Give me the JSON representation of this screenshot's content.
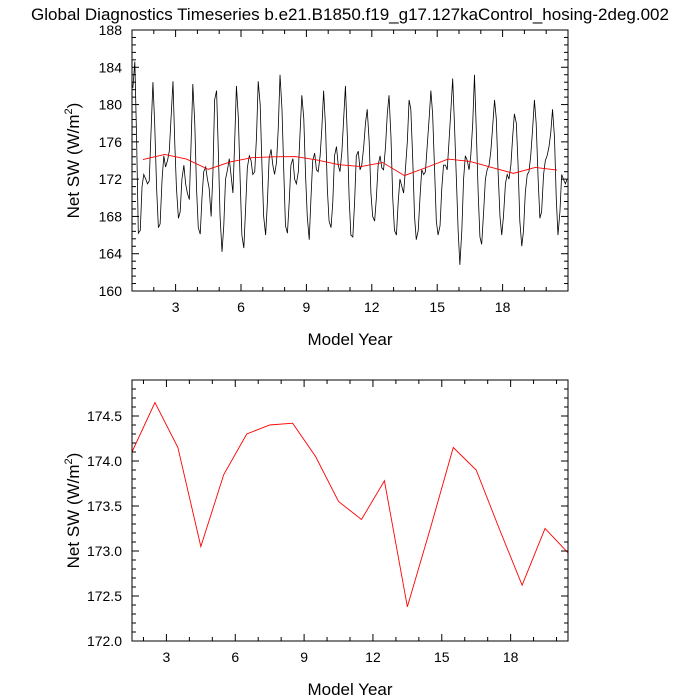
{
  "title": "Global Diagnostics Timeseries b.e21.B1850.f19_g17.127kaControl_hosing-2deg.002",
  "colors": {
    "monthly": "#000000",
    "annual": "#ff0000",
    "axis": "#000000"
  },
  "chart_data": [
    {
      "type": "line",
      "xlabel": "Model Year",
      "ylabel": "Net SW (W/m",
      "ylabel_sup": "2",
      "ylabel_end": ")",
      "xlim": [
        1,
        21
      ],
      "ylim": [
        160,
        188
      ],
      "xticks": [
        3,
        6,
        9,
        12,
        15,
        18
      ],
      "yticks": [
        160,
        164,
        168,
        172,
        176,
        180,
        184,
        188
      ],
      "ytick_labels": [
        "160",
        "164",
        "168",
        "172",
        "176",
        "180",
        "184",
        "188"
      ],
      "series": [
        {
          "style": "monthly",
          "x": [
            1.04,
            1.13,
            1.21,
            1.29,
            1.38,
            1.46,
            1.54,
            1.63,
            1.71,
            1.79,
            1.88,
            1.96,
            2.04,
            2.13,
            2.21,
            2.29,
            2.38,
            2.46,
            2.54,
            2.63,
            2.71,
            2.79,
            2.88,
            2.96,
            3.04,
            3.13,
            3.21,
            3.29,
            3.38,
            3.46,
            3.54,
            3.63,
            3.71,
            3.79,
            3.88,
            3.96,
            4.04,
            4.13,
            4.21,
            4.29,
            4.38,
            4.46,
            4.54,
            4.63,
            4.71,
            4.79,
            4.88,
            4.96,
            5.04,
            5.13,
            5.21,
            5.29,
            5.38,
            5.46,
            5.54,
            5.63,
            5.71,
            5.79,
            5.88,
            5.96,
            6.04,
            6.13,
            6.21,
            6.29,
            6.38,
            6.46,
            6.54,
            6.63,
            6.71,
            6.79,
            6.88,
            6.96,
            7.04,
            7.13,
            7.21,
            7.29,
            7.38,
            7.46,
            7.54,
            7.63,
            7.71,
            7.79,
            7.88,
            7.96,
            8.04,
            8.13,
            8.21,
            8.29,
            8.38,
            8.46,
            8.54,
            8.63,
            8.71,
            8.79,
            8.88,
            8.96,
            9.04,
            9.13,
            9.21,
            9.29,
            9.38,
            9.46,
            9.54,
            9.63,
            9.71,
            9.79,
            9.88,
            9.96,
            10.04,
            10.13,
            10.21,
            10.29,
            10.38,
            10.46,
            10.54,
            10.63,
            10.71,
            10.79,
            10.88,
            10.96,
            11.04,
            11.13,
            11.21,
            11.29,
            11.38,
            11.46,
            11.54,
            11.63,
            11.71,
            11.79,
            11.88,
            11.96,
            12.04,
            12.13,
            12.21,
            12.29,
            12.38,
            12.46,
            12.54,
            12.63,
            12.71,
            12.79,
            12.88,
            12.96,
            13.04,
            13.13,
            13.21,
            13.29,
            13.38,
            13.46,
            13.54,
            13.63,
            13.71,
            13.79,
            13.88,
            13.96,
            14.04,
            14.13,
            14.21,
            14.29,
            14.38,
            14.46,
            14.54,
            14.63,
            14.71,
            14.79,
            14.88,
            14.96,
            15.04,
            15.13,
            15.21,
            15.29,
            15.38,
            15.46,
            15.54,
            15.63,
            15.71,
            15.79,
            15.88,
            15.96,
            16.04,
            16.13,
            16.21,
            16.29,
            16.38,
            16.46,
            16.54,
            16.63,
            16.71,
            16.79,
            16.88,
            16.96,
            17.04,
            17.13,
            17.21,
            17.29,
            17.38,
            17.46,
            17.54,
            17.63,
            17.71,
            17.79,
            17.88,
            17.96,
            18.04,
            18.13,
            18.21,
            18.29,
            18.38,
            18.46,
            18.54,
            18.63,
            18.71,
            18.79,
            18.88,
            18.96,
            19.04,
            19.13,
            19.21,
            19.29,
            19.38,
            19.46,
            19.54,
            19.63,
            19.71,
            19.79,
            19.88,
            19.96,
            20.04,
            20.13,
            20.21,
            20.29,
            20.38,
            20.46,
            20.54,
            20.63,
            20.71,
            20.79,
            20.88,
            20.96
          ],
          "y": [
            181.8,
            184.6,
            176.5,
            166.2,
            166.5,
            171.2,
            172.5,
            172.0,
            171.5,
            171.8,
            177.5,
            182.4,
            178.0,
            171.0,
            166.8,
            167.2,
            172.0,
            174.5,
            173.3,
            174.0,
            175.0,
            178.5,
            182.5,
            176.0,
            171.0,
            167.8,
            168.5,
            172.0,
            173.5,
            171.5,
            170.5,
            169.8,
            175.8,
            182.2,
            178.0,
            171.0,
            166.8,
            166.1,
            170.0,
            172.8,
            173.3,
            172.0,
            171.0,
            168.0,
            172.5,
            180.5,
            181.5,
            175.0,
            168.0,
            164.2,
            167.0,
            172.0,
            173.0,
            174.2,
            172.5,
            170.5,
            176.0,
            182.0,
            178.5,
            172.0,
            166.0,
            164.6,
            168.8,
            173.2,
            174.5,
            174.0,
            172.5,
            172.8,
            176.5,
            182.5,
            180.0,
            173.5,
            168.0,
            166.0,
            169.5,
            174.2,
            175.2,
            173.5,
            172.5,
            173.8,
            177.5,
            183.2,
            179.5,
            173.0,
            167.0,
            166.2,
            169.5,
            173.5,
            174.2,
            172.0,
            171.5,
            172.8,
            177.0,
            181.0,
            178.5,
            172.5,
            168.0,
            165.5,
            170.0,
            174.0,
            174.8,
            173.0,
            172.8,
            174.5,
            177.5,
            181.5,
            177.5,
            171.0,
            167.5,
            166.8,
            169.5,
            174.5,
            175.5,
            173.5,
            172.8,
            175.0,
            178.5,
            182.0,
            176.5,
            170.0,
            166.0,
            165.8,
            169.5,
            174.5,
            175.0,
            173.0,
            173.5,
            175.5,
            178.0,
            179.5,
            176.0,
            170.5,
            168.0,
            167.5,
            170.0,
            173.5,
            174.5,
            173.2,
            173.0,
            175.5,
            179.0,
            181.0,
            176.5,
            170.0,
            166.5,
            166.0,
            169.5,
            172.0,
            171.2,
            170.5,
            173.0,
            176.0,
            180.5,
            179.5,
            174.0,
            168.0,
            165.5,
            166.5,
            170.0,
            173.0,
            172.5,
            172.8,
            175.5,
            178.5,
            181.5,
            179.0,
            173.0,
            167.5,
            166.0,
            167.0,
            171.0,
            173.5,
            173.5,
            173.0,
            176.0,
            179.5,
            182.8,
            178.0,
            172.0,
            166.5,
            162.8,
            166.5,
            172.0,
            174.5,
            174.0,
            173.0,
            174.5,
            178.0,
            183.2,
            177.5,
            170.5,
            165.8,
            165.0,
            168.5,
            172.0,
            173.0,
            173.5,
            175.0,
            177.5,
            180.5,
            178.5,
            173.0,
            168.0,
            166.0,
            168.0,
            171.5,
            172.5,
            172.0,
            173.5,
            176.5,
            179.0,
            178.0,
            173.5,
            167.5,
            164.8,
            166.5,
            170.5,
            172.5,
            172.8,
            174.5,
            177.5,
            180.5,
            178.0,
            172.0,
            167.8,
            168.5,
            172.5,
            174.0,
            174.5,
            175.5,
            177.0,
            179.5,
            176.5,
            170.0,
            166.0,
            168.5,
            172.5,
            172.0,
            171.5,
            172.0
          ]
        },
        {
          "style": "annual",
          "x": [
            1.5,
            2.5,
            3.5,
            4.5,
            5.5,
            6.5,
            7.5,
            8.5,
            9.5,
            10.5,
            11.5,
            12.5,
            13.5,
            14.5,
            15.5,
            16.5,
            17.5,
            18.5,
            19.5,
            20.5
          ],
          "y": [
            174.1,
            174.65,
            174.15,
            173.05,
            173.85,
            174.3,
            174.4,
            174.42,
            174.05,
            173.55,
            173.35,
            173.78,
            172.38,
            173.25,
            174.15,
            173.9,
            173.25,
            172.62,
            173.25,
            172.98
          ]
        }
      ]
    },
    {
      "type": "line",
      "xlabel": "Model Year",
      "ylabel": "Net SW (W/m",
      "ylabel_sup": "2",
      "ylabel_end": ")",
      "xlim": [
        1.5,
        20.5
      ],
      "ylim": [
        172.0,
        174.9
      ],
      "xticks": [
        3,
        6,
        9,
        12,
        15,
        18
      ],
      "yticks": [
        172.0,
        172.5,
        173.0,
        173.5,
        174.0,
        174.5
      ],
      "ytick_labels": [
        "172.0",
        "172.5",
        "173.0",
        "173.5",
        "174.0",
        "174.5"
      ],
      "series": [
        {
          "style": "annual",
          "x": [
            1.5,
            2.5,
            3.5,
            4.5,
            5.5,
            6.5,
            7.5,
            8.5,
            9.5,
            10.5,
            11.5,
            12.5,
            13.5,
            14.5,
            15.5,
            16.5,
            17.5,
            18.5,
            19.5,
            20.5
          ],
          "y": [
            174.1,
            174.65,
            174.15,
            173.05,
            173.85,
            174.3,
            174.4,
            174.42,
            174.05,
            173.55,
            173.35,
            173.78,
            172.38,
            173.25,
            174.15,
            173.9,
            173.25,
            172.62,
            173.25,
            172.98
          ]
        }
      ]
    }
  ]
}
